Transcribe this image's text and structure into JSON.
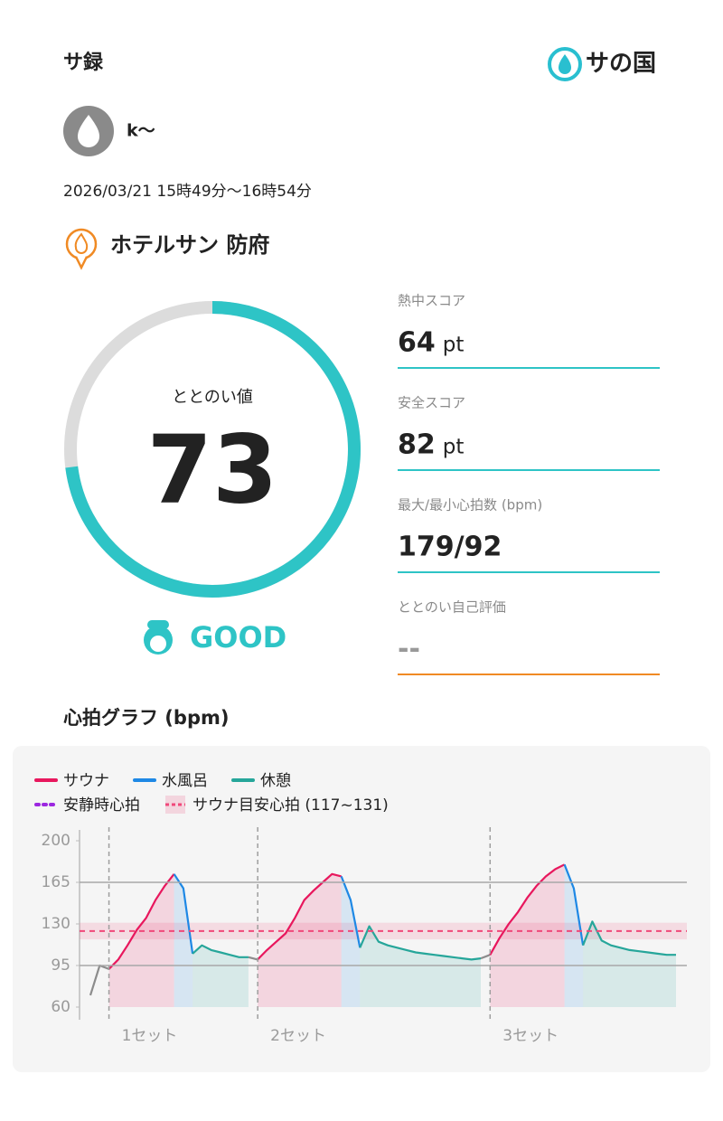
{
  "header": {
    "title": "サ録",
    "logo": "サの国"
  },
  "user": {
    "name": "k〜"
  },
  "session": {
    "datetime": "2026/03/21 15時49分〜16時54分"
  },
  "facility": {
    "name": "ホテルサン 防府"
  },
  "score": {
    "label": "ととのい値",
    "value": 73,
    "rating": "GOOD"
  },
  "metrics": [
    {
      "label": "熱中スコア",
      "value": 64,
      "unit": "pt"
    },
    {
      "label": "安全スコア",
      "value": 82,
      "unit": "pt"
    },
    {
      "label": "最大/最小心拍数 (bpm)",
      "value": "179/92"
    },
    {
      "label": "ととのい自己評価",
      "value": "--"
    }
  ],
  "chart_data": {
    "type": "line",
    "title": "心拍グラフ (bpm)",
    "ylim": [
      60,
      200
    ],
    "yticks": [
      60,
      95,
      130,
      165,
      200
    ],
    "reference_lines": [
      165,
      95
    ],
    "categories": [
      null,
      null,
      "1セット",
      null,
      null,
      null,
      null,
      null,
      null,
      null,
      null,
      null,
      null,
      null,
      null,
      null,
      null,
      null,
      "2セット",
      null,
      null,
      null,
      null,
      null,
      null,
      null,
      null,
      null,
      null,
      null,
      null,
      null,
      null,
      null,
      null,
      null,
      null,
      null,
      null,
      null,
      null,
      null,
      null,
      "3セット",
      null,
      null,
      null,
      null,
      null,
      null,
      null,
      null,
      null,
      null,
      null,
      null,
      null,
      null,
      null,
      null,
      null,
      null,
      null,
      null
    ],
    "series": [
      {
        "color": "#8c8c8c",
        "values": [
          70,
          95,
          92,
          null,
          null,
          null,
          null,
          null,
          null,
          null,
          null,
          null,
          null,
          null,
          null,
          null,
          null,
          102,
          100,
          null,
          null,
          null,
          null,
          null,
          null,
          null,
          null,
          null,
          null,
          null,
          null,
          null,
          null,
          null,
          null,
          null,
          null,
          null,
          null,
          null,
          null,
          null,
          101,
          104,
          null,
          null,
          null,
          null,
          null,
          null,
          null,
          null,
          null,
          null,
          null,
          null,
          null,
          null,
          null,
          null,
          null,
          null,
          null,
          null
        ]
      },
      {
        "name": "サウナ",
        "color": "#e8175d",
        "values": [
          null,
          null,
          92,
          100,
          112,
          125,
          135,
          150,
          162,
          172,
          null,
          null,
          null,
          null,
          null,
          null,
          null,
          null,
          100,
          108,
          115,
          122,
          135,
          150,
          158,
          165,
          172,
          170,
          null,
          null,
          null,
          null,
          null,
          null,
          null,
          null,
          null,
          null,
          null,
          null,
          null,
          null,
          null,
          104,
          118,
          130,
          140,
          152,
          162,
          170,
          176,
          180,
          null,
          null,
          null,
          null,
          null,
          null,
          null,
          null,
          null,
          null,
          null,
          null
        ]
      },
      {
        "name": "水風呂",
        "color": "#1e88e5",
        "values": [
          null,
          null,
          null,
          null,
          null,
          null,
          null,
          null,
          null,
          172,
          160,
          105,
          null,
          null,
          null,
          null,
          null,
          null,
          null,
          null,
          null,
          null,
          null,
          null,
          null,
          null,
          null,
          170,
          150,
          110,
          null,
          null,
          null,
          null,
          null,
          null,
          null,
          null,
          null,
          null,
          null,
          null,
          null,
          null,
          null,
          null,
          null,
          null,
          null,
          null,
          null,
          180,
          160,
          112,
          null,
          null,
          null,
          null,
          null,
          null,
          null,
          null,
          null,
          null
        ]
      },
      {
        "name": "休憩",
        "color": "#26a69a",
        "values": [
          null,
          null,
          null,
          null,
          null,
          null,
          null,
          null,
          null,
          null,
          null,
          105,
          112,
          108,
          106,
          104,
          102,
          102,
          null,
          null,
          null,
          null,
          null,
          null,
          null,
          null,
          null,
          null,
          null,
          110,
          128,
          115,
          112,
          110,
          108,
          106,
          105,
          104,
          103,
          102,
          101,
          100,
          101,
          null,
          null,
          null,
          null,
          null,
          null,
          null,
          null,
          null,
          null,
          112,
          132,
          116,
          112,
          110,
          108,
          107,
          106,
          105,
          104,
          104
        ]
      }
    ],
    "resting": {
      "name": "安静時心拍",
      "color": "#9c27e0"
    },
    "target_band": {
      "name": "サウナ目安心拍 (117~131)",
      "range": [
        117,
        131
      ],
      "color": "#f0487a"
    }
  }
}
